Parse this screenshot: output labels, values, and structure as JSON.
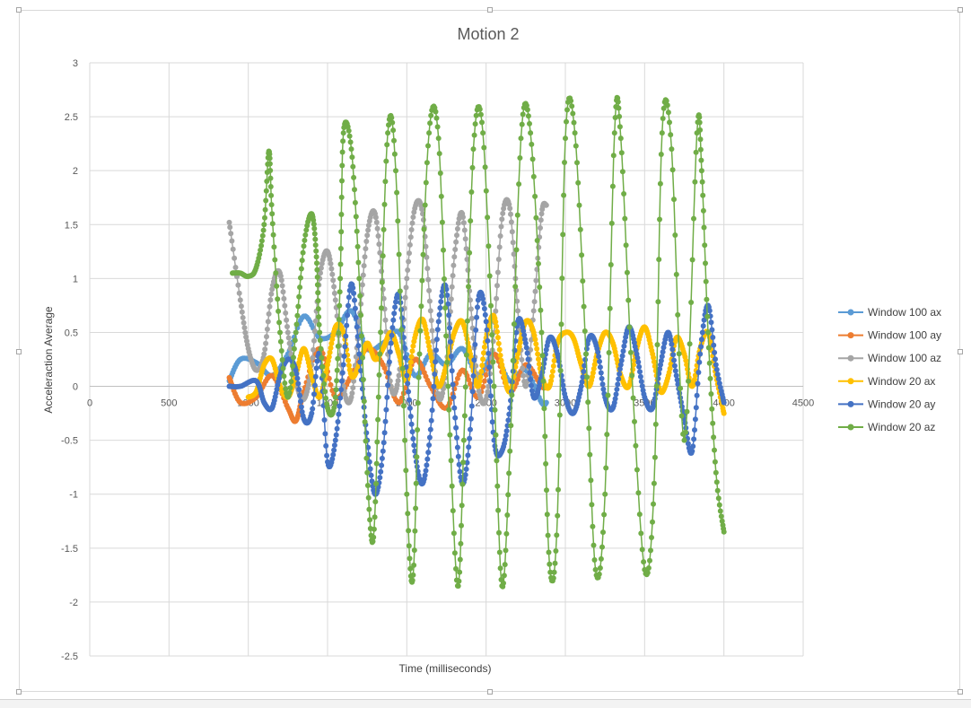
{
  "chart_data": {
    "type": "scatter",
    "title": "Motion 2",
    "xlabel": "Time (milliseconds)",
    "ylabel": "Acceleraction Average",
    "xlim": [
      0,
      4500
    ],
    "ylim": [
      -2.5,
      3
    ],
    "x_ticks": [
      "0",
      "500",
      "1000",
      "1500",
      "2000",
      "2500",
      "3000",
      "3500",
      "4000",
      "4500"
    ],
    "y_ticks": [
      "3",
      "2.5",
      "2",
      "1.5",
      "1",
      "0.5",
      "0",
      "-0.5",
      "-1",
      "-1.5",
      "-2",
      "-2.5"
    ],
    "grid": true,
    "legend": "right",
    "series": [
      {
        "name": "Window 100 ax",
        "color": "#5B9BD5",
        "x": [
          880,
          950,
          1050,
          1150,
          1250,
          1350,
          1450,
          1550,
          1650,
          1750,
          1850,
          1950,
          2050,
          2150,
          2250,
          2350,
          2450,
          2550,
          2650,
          2750,
          2850,
          2880
        ],
        "y": [
          0.05,
          0.25,
          0.22,
          0.1,
          0.3,
          0.65,
          0.45,
          0.5,
          0.7,
          0.35,
          0.4,
          0.5,
          0.1,
          0.3,
          0.2,
          0.35,
          0.1,
          0.3,
          0.05,
          0.15,
          -0.15,
          -0.15
        ]
      },
      {
        "name": "Window 100 ay",
        "color": "#ED7D31",
        "x": [
          880,
          950,
          1050,
          1150,
          1250,
          1300,
          1350,
          1450,
          1550,
          1650,
          1750,
          1850,
          1950,
          2050,
          2150,
          2250,
          2350,
          2450,
          2550,
          2650,
          2750,
          2850,
          2880
        ],
        "y": [
          0.08,
          -0.15,
          -0.1,
          0.1,
          -0.2,
          -0.32,
          -0.05,
          0.35,
          -0.1,
          0.1,
          0.35,
          0.2,
          -0.15,
          0.25,
          0.0,
          -0.2,
          0.15,
          -0.1,
          0.3,
          -0.05,
          0.2,
          0.0,
          0.0
        ]
      },
      {
        "name": "Window 100 az",
        "color": "#A5A5A5",
        "x": [
          880,
          950,
          1000,
          1050,
          1100,
          1150,
          1200,
          1250,
          1300,
          1350,
          1400,
          1450,
          1500,
          1550,
          1600,
          1650,
          1700,
          1750,
          1800,
          1850,
          1900,
          1950,
          2000,
          2050,
          2100,
          2150,
          2200,
          2250,
          2300,
          2350,
          2400,
          2450,
          2500,
          2550,
          2600,
          2650,
          2700,
          2750,
          2800,
          2850,
          2880
        ],
        "y": [
          1.52,
          0.8,
          0.35,
          0.15,
          0.3,
          0.9,
          1.05,
          0.5,
          0.05,
          -0.12,
          0.2,
          1.0,
          1.25,
          0.8,
          0.0,
          -0.1,
          0.6,
          1.4,
          1.6,
          0.9,
          0.0,
          0.1,
          1.0,
          1.65,
          1.6,
          0.7,
          -0.1,
          0.2,
          1.2,
          1.6,
          0.8,
          0.0,
          -0.12,
          0.5,
          1.55,
          1.65,
          0.7,
          0.0,
          0.7,
          1.6,
          1.68
        ]
      },
      {
        "name": "Window 20 ax",
        "color": "#FFC000",
        "x": [
          1000,
          1050,
          1100,
          1150,
          1200,
          1250,
          1300,
          1350,
          1400,
          1450,
          1500,
          1550,
          1600,
          1650,
          1700,
          1750,
          1800,
          1850,
          1900,
          1950,
          2000,
          2050,
          2100,
          2150,
          2200,
          2250,
          2300,
          2350,
          2400,
          2450,
          2500,
          2550,
          2600,
          2650,
          2700,
          2750,
          2800,
          2850,
          2900,
          2950,
          3000,
          3050,
          3100,
          3150,
          3200,
          3250,
          3300,
          3350,
          3400,
          3450,
          3500,
          3550,
          3600,
          3650,
          3700,
          3750,
          3800,
          3850,
          3900,
          3950,
          4000
        ],
        "y": [
          -0.1,
          -0.05,
          0.2,
          0.25,
          0.0,
          -0.1,
          0.1,
          0.35,
          0.1,
          -0.1,
          0.2,
          0.55,
          0.5,
          0.1,
          0.2,
          0.4,
          0.25,
          0.35,
          0.5,
          0.3,
          0.05,
          0.45,
          0.62,
          0.3,
          0.0,
          0.2,
          0.5,
          0.6,
          0.3,
          0.0,
          0.45,
          0.65,
          0.2,
          -0.05,
          0.3,
          0.6,
          0.5,
          0.1,
          0.0,
          0.4,
          0.5,
          0.45,
          0.2,
          0.0,
          0.3,
          0.5,
          0.4,
          0.1,
          0.0,
          0.35,
          0.55,
          0.3,
          -0.05,
          0.1,
          0.45,
          0.3,
          0.0,
          0.35,
          0.5,
          0.1,
          -0.25
        ]
      },
      {
        "name": "Window 20 ay",
        "color": "#4472C4",
        "x": [
          880,
          950,
          1050,
          1100,
          1150,
          1200,
          1250,
          1300,
          1350,
          1400,
          1450,
          1500,
          1550,
          1600,
          1650,
          1700,
          1750,
          1800,
          1850,
          1900,
          1950,
          2000,
          2050,
          2100,
          2150,
          2200,
          2250,
          2300,
          2350,
          2400,
          2450,
          2500,
          2550,
          2600,
          2650,
          2700,
          2750,
          2800,
          2850,
          2900,
          2950,
          3000,
          3050,
          3100,
          3150,
          3200,
          3250,
          3300,
          3350,
          3400,
          3450,
          3500,
          3550,
          3600,
          3650,
          3700,
          3750,
          3800,
          3850,
          3900,
          3950,
          4000
        ],
        "y": [
          0.0,
          0.0,
          0.05,
          -0.15,
          -0.2,
          0.1,
          0.25,
          0.15,
          -0.3,
          -0.25,
          0.3,
          -0.7,
          -0.5,
          0.2,
          0.95,
          0.3,
          -0.5,
          -1.0,
          -0.6,
          0.4,
          0.85,
          0.1,
          -0.6,
          -0.9,
          -0.4,
          0.6,
          0.9,
          -0.2,
          -0.9,
          -0.4,
          0.8,
          0.6,
          -0.5,
          -0.6,
          -0.2,
          0.6,
          0.4,
          -0.1,
          0.1,
          0.45,
          0.3,
          -0.1,
          -0.25,
          0.0,
          0.45,
          0.35,
          -0.1,
          -0.2,
          0.2,
          0.55,
          0.3,
          -0.1,
          -0.2,
          0.2,
          0.5,
          0.1,
          -0.3,
          -0.6,
          0.3,
          0.75,
          0.2,
          -0.15
        ]
      },
      {
        "name": "Window 20 az",
        "color": "#70AD47",
        "x": [
          900,
          950,
          1000,
          1050,
          1100,
          1130,
          1150,
          1200,
          1250,
          1300,
          1350,
          1400,
          1430,
          1450,
          1500,
          1550,
          1580,
          1600,
          1650,
          1700,
          1750,
          1790,
          1830,
          1880,
          1930,
          2000,
          2040,
          2080,
          2140,
          2200,
          2260,
          2320,
          2360,
          2420,
          2480,
          2550,
          2600,
          2650,
          2720,
          2780,
          2850,
          2900,
          2950,
          3000,
          3060,
          3130,
          3190,
          3250,
          3310,
          3350,
          3420,
          3500,
          3560,
          3610,
          3670,
          3750,
          3830,
          3860,
          3900,
          3950,
          4000
        ],
        "y": [
          1.05,
          1.05,
          1.02,
          1.1,
          1.5,
          2.18,
          1.6,
          0.5,
          -0.1,
          0.5,
          1.3,
          1.6,
          1.2,
          0.5,
          -0.2,
          -0.1,
          1.0,
          2.35,
          2.2,
          1.0,
          -0.8,
          -1.4,
          0.3,
          2.35,
          2.0,
          -1.0,
          -1.75,
          0.3,
          2.35,
          2.3,
          0.0,
          -1.85,
          -0.5,
          2.2,
          2.35,
          0.0,
          -1.85,
          -0.6,
          2.3,
          2.35,
          0.5,
          -1.65,
          -1.2,
          2.3,
          2.35,
          0.3,
          -1.7,
          -1.0,
          2.35,
          2.3,
          0.1,
          -1.7,
          -0.9,
          2.35,
          2.2,
          -0.5,
          2.35,
          2.0,
          0.5,
          -0.8,
          -1.35
        ]
      }
    ]
  }
}
